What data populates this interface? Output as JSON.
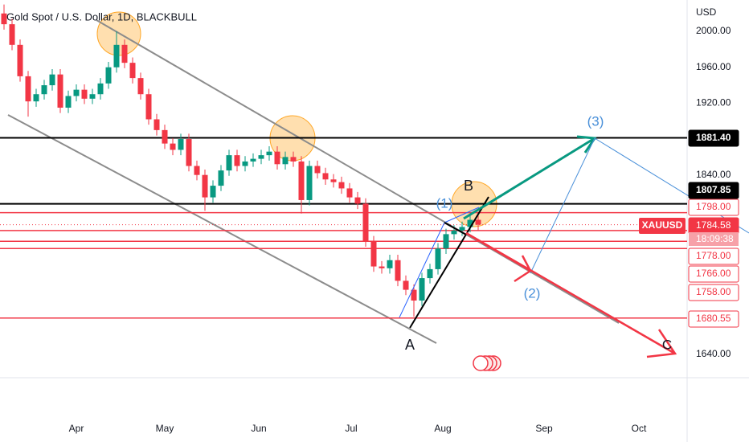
{
  "chart_data": {
    "type": "candlestick",
    "title": "Gold Spot / U.S. Dollar, 1D, BLACKBULL",
    "y_axis_label": "USD",
    "categories": [
      "Apr",
      "May",
      "Jun",
      "Jul",
      "Aug",
      "Sep",
      "Oct"
    ],
    "open": [
      2020,
      2008,
      1985,
      1950,
      1922,
      1930,
      1940,
      1952,
      1915,
      1928,
      1935,
      1925,
      1930,
      1942,
      1960,
      1985,
      1965,
      1948,
      1930,
      1902,
      1890,
      1875,
      1868,
      1880,
      1850,
      1840,
      1815,
      1828,
      1845,
      1862,
      1850,
      1855,
      1858,
      1862,
      1866,
      1852,
      1860,
      1855,
      1812,
      1850,
      1842,
      1835,
      1832,
      1825,
      1815,
      1808,
      1766,
      1738,
      1736,
      1745,
      1722,
      1712,
      1700,
      1725,
      1735,
      1758,
      1774,
      1778,
      1782,
      1790
    ],
    "high": [
      2030,
      2014,
      1991,
      1956,
      1936,
      1946,
      1958,
      1958,
      1934,
      1941,
      1941,
      1936,
      1948,
      1966,
      2000,
      1991,
      1971,
      1954,
      1936,
      1908,
      1896,
      1881,
      1886,
      1886,
      1856,
      1846,
      1834,
      1851,
      1868,
      1868,
      1861,
      1864,
      1868,
      1872,
      1872,
      1866,
      1866,
      1861,
      1856,
      1856,
      1848,
      1841,
      1838,
      1831,
      1821,
      1814,
      1772,
      1744,
      1751,
      1751,
      1728,
      1718,
      1731,
      1741,
      1764,
      1780,
      1784,
      1788,
      1796,
      1798
    ],
    "low": [
      2002,
      1979,
      1944,
      1905,
      1916,
      1924,
      1934,
      1909,
      1909,
      1922,
      1919,
      1919,
      1924,
      1936,
      1954,
      1959,
      1942,
      1924,
      1896,
      1884,
      1869,
      1862,
      1862,
      1844,
      1834,
      1800,
      1809,
      1822,
      1839,
      1844,
      1844,
      1849,
      1852,
      1856,
      1846,
      1846,
      1849,
      1797,
      1806,
      1836,
      1829,
      1826,
      1819,
      1809,
      1802,
      1760,
      1732,
      1730,
      1730,
      1716,
      1706,
      1682,
      1694,
      1719,
      1729,
      1752,
      1768,
      1772,
      1776,
      1778
    ],
    "close": [
      2008,
      1985,
      1950,
      1922,
      1930,
      1940,
      1952,
      1915,
      1928,
      1935,
      1925,
      1930,
      1942,
      1960,
      1985,
      1965,
      1948,
      1930,
      1902,
      1890,
      1875,
      1868,
      1880,
      1850,
      1840,
      1815,
      1828,
      1845,
      1862,
      1850,
      1855,
      1858,
      1862,
      1866,
      1852,
      1860,
      1855,
      1812,
      1850,
      1842,
      1835,
      1832,
      1825,
      1815,
      1808,
      1766,
      1738,
      1736,
      1745,
      1722,
      1712,
      1700,
      1725,
      1735,
      1758,
      1774,
      1778,
      1782,
      1790,
      1784.58
    ],
    "up_color": "#089981",
    "down_color": "#f23645",
    "ylim": [
      1614,
      2035
    ],
    "yticks": [
      {
        "value": 2000,
        "label": "2000.00"
      },
      {
        "value": 1960,
        "label": "1960.00"
      },
      {
        "value": 1920,
        "label": "1920.00"
      },
      {
        "value": 1840,
        "label": "1840.00"
      },
      {
        "value": 1640,
        "label": "1640.00"
      }
    ],
    "grid": false,
    "levels": [
      {
        "value": 1881.4,
        "label": "1881.40",
        "color": "#000000",
        "style": "solid"
      },
      {
        "value": 1807.85,
        "label": "1807.85",
        "color": "#000000",
        "style": "solid"
      },
      {
        "value": 1798,
        "label": "1798.00",
        "color": "#f23645",
        "style": "solid"
      },
      {
        "value": 1784.58,
        "label": "1784.58",
        "color": "#f23645",
        "style": "dotted",
        "name": "XAUUSD",
        "countdown": "18:09:38"
      },
      {
        "value": 1778,
        "label": "1778.00",
        "color": "#f23645",
        "style": "solid"
      },
      {
        "value": 1766,
        "label": "1766.00",
        "color": "#f23645",
        "style": "solid"
      },
      {
        "value": 1758,
        "label": "1758.00",
        "color": "#f23645",
        "style": "solid"
      },
      {
        "value": 1680.55,
        "label": "1680.55",
        "color": "#f23645",
        "style": "solid"
      }
    ],
    "annotations": [
      "A",
      "B",
      "(1)",
      "(2)",
      "(3)",
      "C"
    ]
  }
}
